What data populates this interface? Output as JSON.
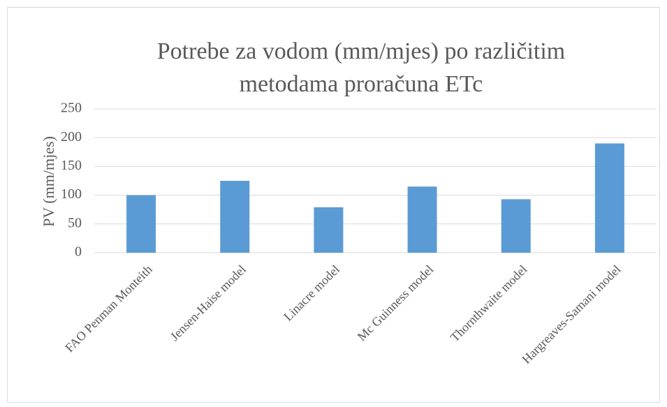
{
  "chart_data": {
    "type": "bar",
    "title": "Potrebe za vodom (mm/mjes) po različitim metodama proračuna ETc",
    "y_label": "PV (mm/mjes)",
    "categories": [
      "FAO Penman Monteith",
      "Jensen-Haise model",
      "Linacre model",
      "Mc Guinness model",
      "Thornthwaite model",
      "Hargreaves-Samani model"
    ],
    "values": [
      100,
      125,
      79,
      115,
      93,
      190
    ],
    "color": "#5b9bd5",
    "ylim": [
      0,
      250
    ],
    "yticks": [
      0,
      50,
      100,
      150,
      200,
      250
    ],
    "grid": true
  }
}
